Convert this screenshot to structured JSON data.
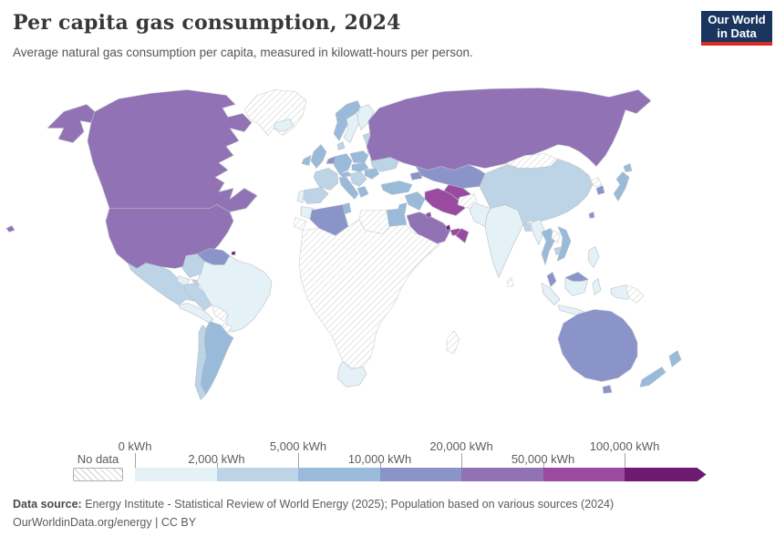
{
  "header": {
    "title": "Per capita gas consumption, 2024",
    "subtitle": "Average natural gas consumption per capita, measured in kilowatt-hours per person."
  },
  "logo": {
    "line1": "Our World",
    "line2": "in Data",
    "bg_color": "#1a355e",
    "accent_color": "#dc2a20"
  },
  "legend": {
    "no_data_label": "No data",
    "unit": "kWh",
    "colors": [
      "#e4f1f6",
      "#bdd3e6",
      "#9abada",
      "#8a94c9",
      "#9172b5",
      "#9a4b9f",
      "#6d1a70"
    ],
    "ticks": [
      {
        "label": "0 kWh",
        "row": "top"
      },
      {
        "label": "2,000 kWh",
        "row": "bottom"
      },
      {
        "label": "5,000 kWh",
        "row": "top"
      },
      {
        "label": "10,000 kWh",
        "row": "bottom"
      },
      {
        "label": "20,000 kWh",
        "row": "top"
      },
      {
        "label": "50,000 kWh",
        "row": "bottom"
      },
      {
        "label": "100,000 kWh",
        "row": "top"
      }
    ]
  },
  "footer": {
    "source_label": "Data source:",
    "source_text": " Energy Institute - Statistical Review of World Energy (2025); Population based on various sources (2024)",
    "link_url_text": "OurWorldinData.org/energy",
    "separator": " | ",
    "license_text": "CC BY"
  },
  "chart_data": {
    "type": "heatmap",
    "subtype": "world-choropleth",
    "title": "Per capita gas consumption, 2024",
    "unit": "kWh per person",
    "legend_bins": [
      {
        "range": "0–2,000 kWh",
        "color": "#e4f1f6"
      },
      {
        "range": "2,000–5,000 kWh",
        "color": "#bdd3e6"
      },
      {
        "range": "5,000–10,000 kWh",
        "color": "#9abada"
      },
      {
        "range": "10,000–20,000 kWh",
        "color": "#8a94c9"
      },
      {
        "range": "20,000–50,000 kWh",
        "color": "#9172b5"
      },
      {
        "range": "50,000–100,000 kWh",
        "color": "#9a4b9f"
      },
      {
        "range": "100,000+ kWh",
        "color": "#6d1a70"
      }
    ],
    "no_data_regions": [
      "Greenland",
      "Most of Sub-Saharan Africa",
      "Libya",
      "Yemen",
      "Western Sahara",
      "Bolivia",
      "Paraguay",
      "Mongolia",
      "Afghanistan",
      "North Korea",
      "Laos",
      "Sri Lanka",
      "Madagascar",
      "Papua New Guinea",
      "Haiti/Dominican Republic"
    ],
    "countries_by_bin": {
      "0-2,000 kWh": [
        "Brazil",
        "India",
        "Sweden",
        "Finland",
        "Iceland",
        "South Africa",
        "Indonesia",
        "Morocco",
        "Myanmar",
        "Philippines",
        "Ecuador",
        "Portugal",
        "Central America"
      ],
      "2,000-5,000 kWh": [
        "Mexico",
        "China",
        "Colombia",
        "Peru",
        "Chile",
        "France",
        "Spain",
        "Ukraine",
        "Cuba",
        "Pakistan",
        "Bangladesh",
        "Cambodia",
        "Denmark",
        "Baltic states"
      ],
      "5,000-10,000 kWh": [
        "United Kingdom",
        "Ireland",
        "Germany",
        "Italy",
        "Poland",
        "Norway",
        "Argentina",
        "Turkey",
        "Egypt",
        "Japan",
        "Thailand",
        "Vietnam",
        "New Zealand",
        "Greece",
        "Romania",
        "Tunisia",
        "Iraq"
      ],
      "10,000-20,000 kWh": [
        "Australia",
        "Kazakhstan",
        "Algeria",
        "Venezuela",
        "Malaysia",
        "Netherlands",
        "Belarus",
        "South Korea",
        "Taiwan",
        "Azerbaijan"
      ],
      "20,000-50,000 kWh": [
        "United States",
        "Canada",
        "Russia",
        "Saudi Arabia"
      ],
      "50,000-100,000 kWh": [
        "Iran",
        "Turkmenistan",
        "Uzbekistan",
        "United Arab Emirates",
        "Oman",
        "Kuwait"
      ],
      "100,000+ kWh": [
        "Qatar",
        "Trinidad and Tobago"
      ]
    }
  }
}
